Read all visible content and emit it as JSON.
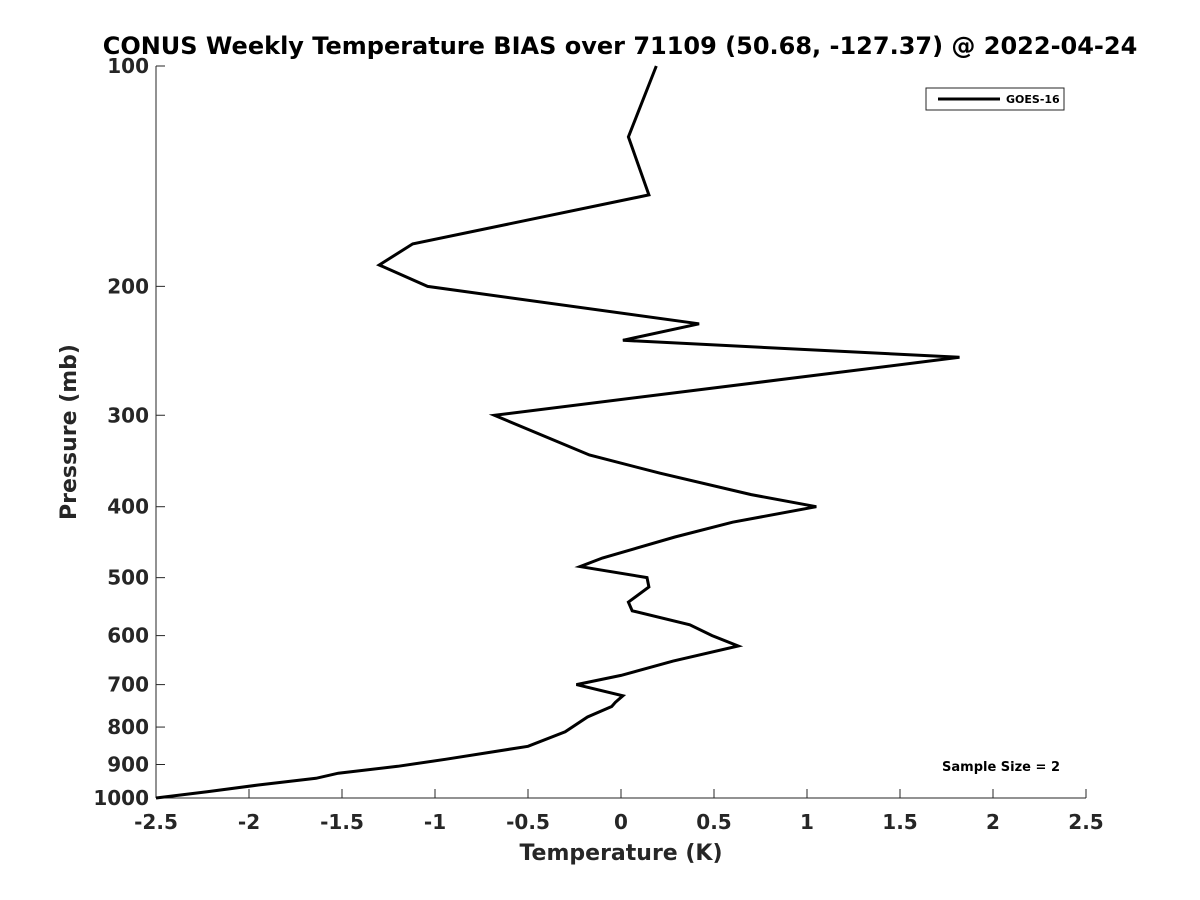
{
  "chart_data": {
    "type": "line",
    "title": "CONUS Weekly Temperature BIAS over 71109 (50.68, -127.37) @ 2022-04-24",
    "xlabel": "Temperature (K)",
    "ylabel": "Pressure (mb)",
    "xlim": [
      -2.5,
      2.5
    ],
    "ylim": [
      1000,
      100
    ],
    "y_scale": "log",
    "y_reversed": true,
    "x_ticks": [
      "-2.5",
      "-2",
      "-1.5",
      "-1",
      "-0.5",
      "0",
      "0.5",
      "1",
      "1.5",
      "2",
      "2.5"
    ],
    "x_tick_values": [
      -2.5,
      -2,
      -1.5,
      -1,
      -0.5,
      0,
      0.5,
      1,
      1.5,
      2,
      2.5
    ],
    "y_ticks": [
      "100",
      "200",
      "300",
      "400",
      "500",
      "600",
      "700",
      "800",
      "900",
      "1000"
    ],
    "y_tick_values": [
      100,
      200,
      300,
      400,
      500,
      600,
      700,
      800,
      900,
      1000
    ],
    "grid": false,
    "legend_position": "top-right",
    "series": [
      {
        "name": "GOES-16",
        "color": "#000000",
        "points": [
          {
            "x": 0.19,
            "p": 100
          },
          {
            "x": 0.04,
            "p": 125
          },
          {
            "x": 0.15,
            "p": 150
          },
          {
            "x": -1.12,
            "p": 175
          },
          {
            "x": -1.3,
            "p": 187
          },
          {
            "x": -1.04,
            "p": 200
          },
          {
            "x": 0.42,
            "p": 225
          },
          {
            "x": 0.01,
            "p": 237
          },
          {
            "x": 1.82,
            "p": 250
          },
          {
            "x": -0.68,
            "p": 300
          },
          {
            "x": -0.17,
            "p": 340
          },
          {
            "x": 0.21,
            "p": 360
          },
          {
            "x": 0.7,
            "p": 385
          },
          {
            "x": 1.05,
            "p": 400
          },
          {
            "x": 0.6,
            "p": 420
          },
          {
            "x": 0.29,
            "p": 440
          },
          {
            "x": -0.1,
            "p": 470
          },
          {
            "x": -0.22,
            "p": 483
          },
          {
            "x": 0.14,
            "p": 500
          },
          {
            "x": 0.15,
            "p": 515
          },
          {
            "x": 0.04,
            "p": 540
          },
          {
            "x": 0.06,
            "p": 555
          },
          {
            "x": 0.37,
            "p": 580
          },
          {
            "x": 0.49,
            "p": 600
          },
          {
            "x": 0.63,
            "p": 620
          },
          {
            "x": 0.28,
            "p": 650
          },
          {
            "x": 0.0,
            "p": 680
          },
          {
            "x": -0.24,
            "p": 700
          },
          {
            "x": 0.01,
            "p": 725
          },
          {
            "x": -0.03,
            "p": 740
          },
          {
            "x": -0.05,
            "p": 750
          },
          {
            "x": -0.18,
            "p": 775
          },
          {
            "x": -0.3,
            "p": 812
          },
          {
            "x": -0.5,
            "p": 850
          },
          {
            "x": -0.94,
            "p": 885
          },
          {
            "x": -1.2,
            "p": 905
          },
          {
            "x": -1.52,
            "p": 925
          },
          {
            "x": -1.64,
            "p": 940
          },
          {
            "x": -1.95,
            "p": 960
          },
          {
            "x": -2.22,
            "p": 980
          },
          {
            "x": -2.5,
            "p": 1000
          }
        ]
      }
    ],
    "annotations": [
      {
        "text": "Sample Size = 2",
        "position": "bottom-right"
      }
    ]
  }
}
